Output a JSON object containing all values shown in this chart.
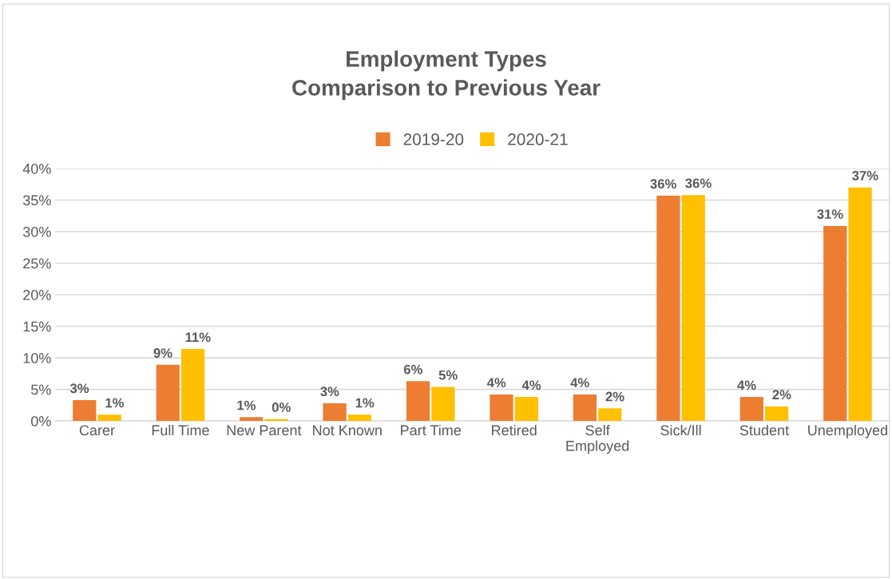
{
  "chart_data": {
    "type": "bar",
    "title": "Employment Types\nComparison to Previous Year",
    "categories": [
      "Carer",
      "Full Time",
      "New Parent",
      "Not Known",
      "Part Time",
      "Retired",
      "Self\nEmployed",
      "Sick/Ill",
      "Student",
      "Unemployed"
    ],
    "series": [
      {
        "name": "2019-20",
        "color": "#ed7d31",
        "values": [
          3.3,
          8.9,
          0.6,
          2.8,
          6.3,
          4.2,
          4.2,
          35.7,
          3.8,
          30.9
        ],
        "value_labels": [
          "3%",
          "9%",
          "1%",
          "3%",
          "6%",
          "4%",
          "4%",
          "36%",
          "4%",
          "31%"
        ]
      },
      {
        "name": "2020-21",
        "color": "#ffc000",
        "values": [
          1.0,
          11.4,
          0.3,
          1.0,
          5.4,
          3.8,
          2.0,
          35.8,
          2.3,
          37.0
        ],
        "value_labels": [
          "1%",
          "11%",
          "0%",
          "1%",
          "5%",
          "4%",
          "2%",
          "36%",
          "2%",
          "37%"
        ]
      }
    ],
    "ylim": [
      0,
      40
    ],
    "yticks": [
      {
        "value": 0,
        "label": "0%"
      },
      {
        "value": 5,
        "label": "5%"
      },
      {
        "value": 10,
        "label": "10%"
      },
      {
        "value": 15,
        "label": "15%"
      },
      {
        "value": 20,
        "label": "20%"
      },
      {
        "value": 25,
        "label": "25%"
      },
      {
        "value": 30,
        "label": "30%"
      },
      {
        "value": 35,
        "label": "35%"
      },
      {
        "value": 40,
        "label": "40%"
      }
    ],
    "grid": "y",
    "legend": "top"
  }
}
